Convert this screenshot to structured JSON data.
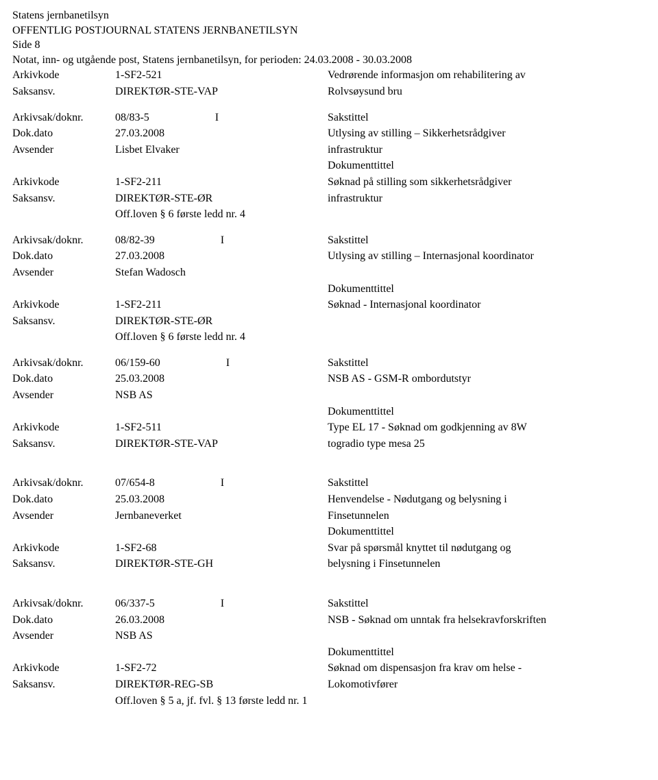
{
  "header": {
    "org": "Statens jernbanetilsyn",
    "title": "OFFENTLIG POSTJOURNAL STATENS JERNBANETILSYN",
    "side": "Side 8",
    "subtitle": "Notat, inn- og utgående post, Statens jernbanetilsyn, for perioden: 24.03.2008 - 30.03.2008"
  },
  "labels": {
    "arkivkode": "Arkivkode",
    "saksansv": "Saksansv.",
    "arkivsak": "Arkivsak/doknr.",
    "dokdato": "Dok.dato",
    "avsender": "Avsender",
    "sakstittel": "Sakstittel",
    "dokumenttittel": "Dokumenttittel"
  },
  "topEntry": {
    "arkivkode": "1-SF2-521",
    "saksansv": "DIREKTØR-STE-VAP",
    "rightLine1": "Vedrørende informasjon om rehabilitering av",
    "rightLine2": "Rolvsøysund bru"
  },
  "entries": [
    {
      "arkivsak": "08/83-5",
      "io": "I",
      "dokdato": "27.03.2008",
      "avsender": "Lisbet Elvaker",
      "arkivkode": "1-SF2-211",
      "saksansv": "DIREKTØR-STE-ØR",
      "extra": "Off.loven § 6 første ledd nr. 4",
      "sakstittel_l1": "Utlysing av stilling – Sikkerhetsrådgiver",
      "sakstittel_l2": "infrastruktur",
      "doktittel_l1": "Søknad på stilling som sikkerhetsrådgiver",
      "doktittel_l2": "infrastruktur"
    },
    {
      "arkivsak": "08/82-39",
      "io": "I",
      "dokdato": "27.03.2008",
      "avsender": "Stefan Wadosch",
      "arkivkode": "1-SF2-211",
      "saksansv": "DIREKTØR-STE-ØR",
      "extra": "Off.loven § 6 første ledd nr. 4",
      "sakstittel_l1": "Utlysing av stilling – Internasjonal koordinator",
      "sakstittel_l2": "",
      "doktittel_l1": "Søknad - Internasjonal koordinator",
      "doktittel_l2": ""
    },
    {
      "arkivsak": "06/159-60",
      "io": "I",
      "dokdato": "25.03.2008",
      "avsender": "NSB AS",
      "arkivkode": "1-SF2-511",
      "saksansv": "DIREKTØR-STE-VAP",
      "extra": "",
      "sakstittel_l1": "NSB AS - GSM-R ombordutstyr",
      "sakstittel_l2": "",
      "doktittel_l1": "Type EL 17 - Søknad om godkjenning av 8W",
      "doktittel_l2": "togradio type mesa 25"
    },
    {
      "arkivsak": "07/654-8",
      "io": "I",
      "dokdato": "25.03.2008",
      "avsender": "Jernbaneverket",
      "arkivkode": "1-SF2-68",
      "saksansv": "DIREKTØR-STE-GH",
      "extra": "",
      "sakstittel_l1": "Henvendelse - Nødutgang og belysning i",
      "sakstittel_l2": "Finsetunnelen",
      "doktittel_l1": "Svar på spørsmål knyttet til nødutgang og",
      "doktittel_l2": "belysning i Finsetunnelen"
    },
    {
      "arkivsak": "06/337-5",
      "io": "I",
      "dokdato": "26.03.2008",
      "avsender": "NSB AS",
      "arkivkode": "1-SF2-72",
      "saksansv": "DIREKTØR-REG-SB",
      "extra": "Off.loven § 5 a, jf. fvl. § 13 første ledd nr. 1",
      "sakstittel_l1": "NSB - Søknad om unntak fra helsekravforskriften",
      "sakstittel_l2": "",
      "doktittel_l1": "Søknad om dispensasjon fra krav om helse -",
      "doktittel_l2": "Lokomotivfører"
    }
  ]
}
